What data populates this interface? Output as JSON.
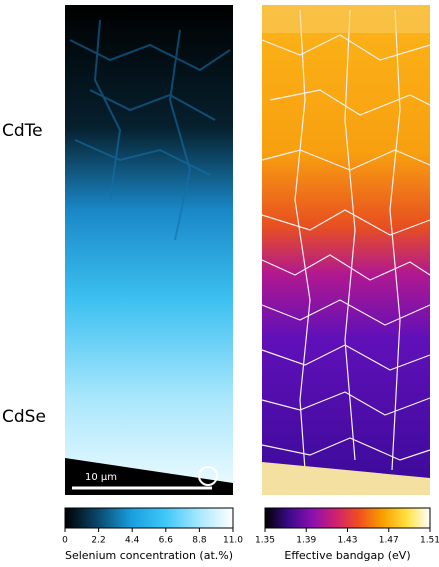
{
  "labels": {
    "top": "CdTe",
    "bottom": "CdSe"
  },
  "scale_bar": "10 µm",
  "colorbars": [
    {
      "label": "Selenium concentration (at.%)",
      "lim": [
        0,
        11
      ],
      "ticks": [
        0,
        2.2,
        4.4,
        6.6,
        8.8,
        {
          "value": 11,
          "label": "11.0"
        }
      ],
      "colors": [
        "#000000",
        "#0a4a6e",
        "#1aa0e0",
        "#40c8f8",
        "#a8e8ff",
        "#ffffff"
      ]
    },
    {
      "label": "Effective bandgap (eV)",
      "lim": [
        1.35,
        1.51
      ],
      "ticks": [
        1.35,
        1.39,
        1.43,
        1.47,
        1.51
      ],
      "colors": [
        "#000000",
        "#3a0a8a",
        "#8a10b0",
        "#d02070",
        "#f05020",
        "#f8a000",
        "#ffe040",
        "#ffffff"
      ]
    }
  ]
}
